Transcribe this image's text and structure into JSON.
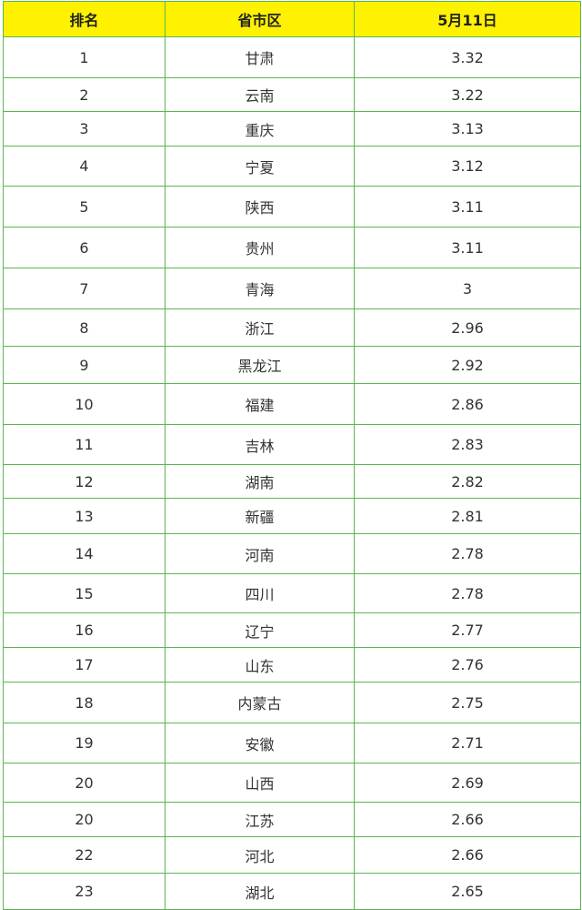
{
  "table": {
    "headers": [
      "排名",
      "省市区",
      "5月11日"
    ],
    "header_bg": "#fff200",
    "border_color": "#58b84e",
    "rows": [
      [
        "1",
        "甘肃",
        "3.32"
      ],
      [
        "2",
        "云南",
        "3.22"
      ],
      [
        "3",
        "重庆",
        "3.13"
      ],
      [
        "4",
        "宁夏",
        "3.12"
      ],
      [
        "5",
        "陕西",
        "3.11"
      ],
      [
        "6",
        "贵州",
        "3.11"
      ],
      [
        "7",
        "青海",
        "3"
      ],
      [
        "8",
        "浙江",
        "2.96"
      ],
      [
        "9",
        "黑龙江",
        "2.92"
      ],
      [
        "10",
        "福建",
        "2.86"
      ],
      [
        "11",
        "吉林",
        "2.83"
      ],
      [
        "12",
        "湖南",
        "2.82"
      ],
      [
        "13",
        "新疆",
        "2.81"
      ],
      [
        "14",
        "河南",
        "2.78"
      ],
      [
        "15",
        "四川",
        "2.78"
      ],
      [
        "16",
        "辽宁",
        "2.77"
      ],
      [
        "17",
        "山东",
        "2.76"
      ],
      [
        "18",
        "内蒙古",
        "2.75"
      ],
      [
        "19",
        "安徽",
        "2.71"
      ],
      [
        "20",
        "山西",
        "2.69"
      ],
      [
        "20",
        "江苏",
        "2.66"
      ],
      [
        "22",
        "河北",
        "2.66"
      ],
      [
        "23",
        "湖北",
        "2.65"
      ]
    ]
  }
}
